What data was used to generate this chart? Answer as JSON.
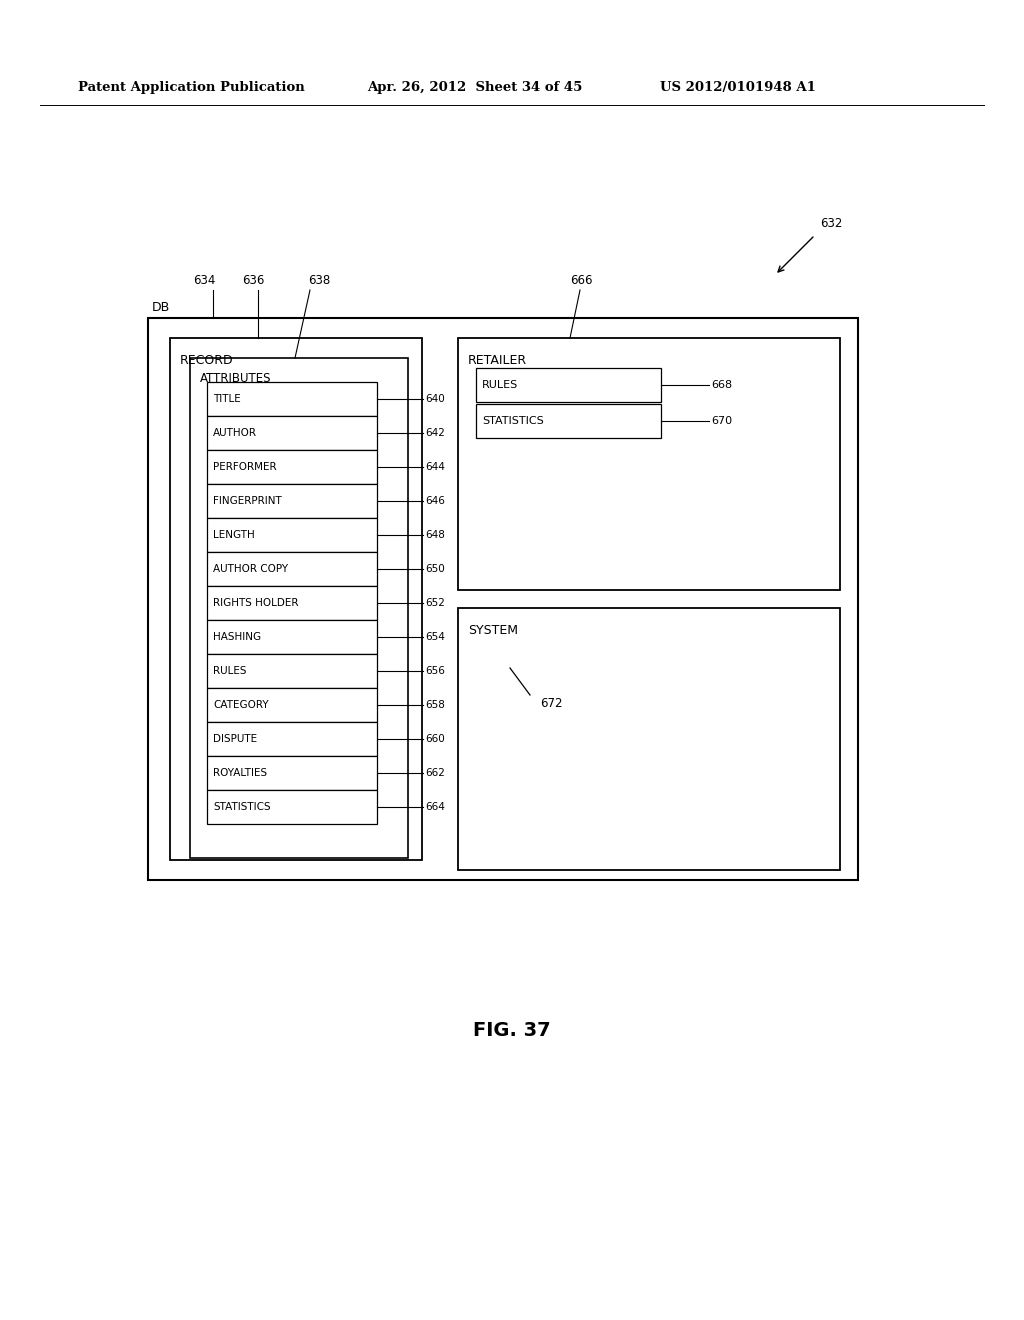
{
  "bg_color": "#ffffff",
  "header_left": "Patent Application Publication",
  "header_mid": "Apr. 26, 2012  Sheet 34 of 45",
  "header_right": "US 2012/0101948 A1",
  "fig_label": "FIG. 37",
  "items": [
    {
      "label": "TITLE",
      "id": "640"
    },
    {
      "label": "AUTHOR",
      "id": "642"
    },
    {
      "label": "PERFORMER",
      "id": "644"
    },
    {
      "label": "FINGERPRINT",
      "id": "646"
    },
    {
      "label": "LENGTH",
      "id": "648"
    },
    {
      "label": "AUTHOR COPY",
      "id": "650"
    },
    {
      "label": "RIGHTS HOLDER",
      "id": "652"
    },
    {
      "label": "HASHING",
      "id": "654"
    },
    {
      "label": "RULES",
      "id": "656"
    },
    {
      "label": "CATEGORY",
      "id": "658"
    },
    {
      "label": "DISPUTE",
      "id": "660"
    },
    {
      "label": "ROYALTIES",
      "id": "662"
    },
    {
      "label": "STATISTICS",
      "id": "664"
    }
  ]
}
